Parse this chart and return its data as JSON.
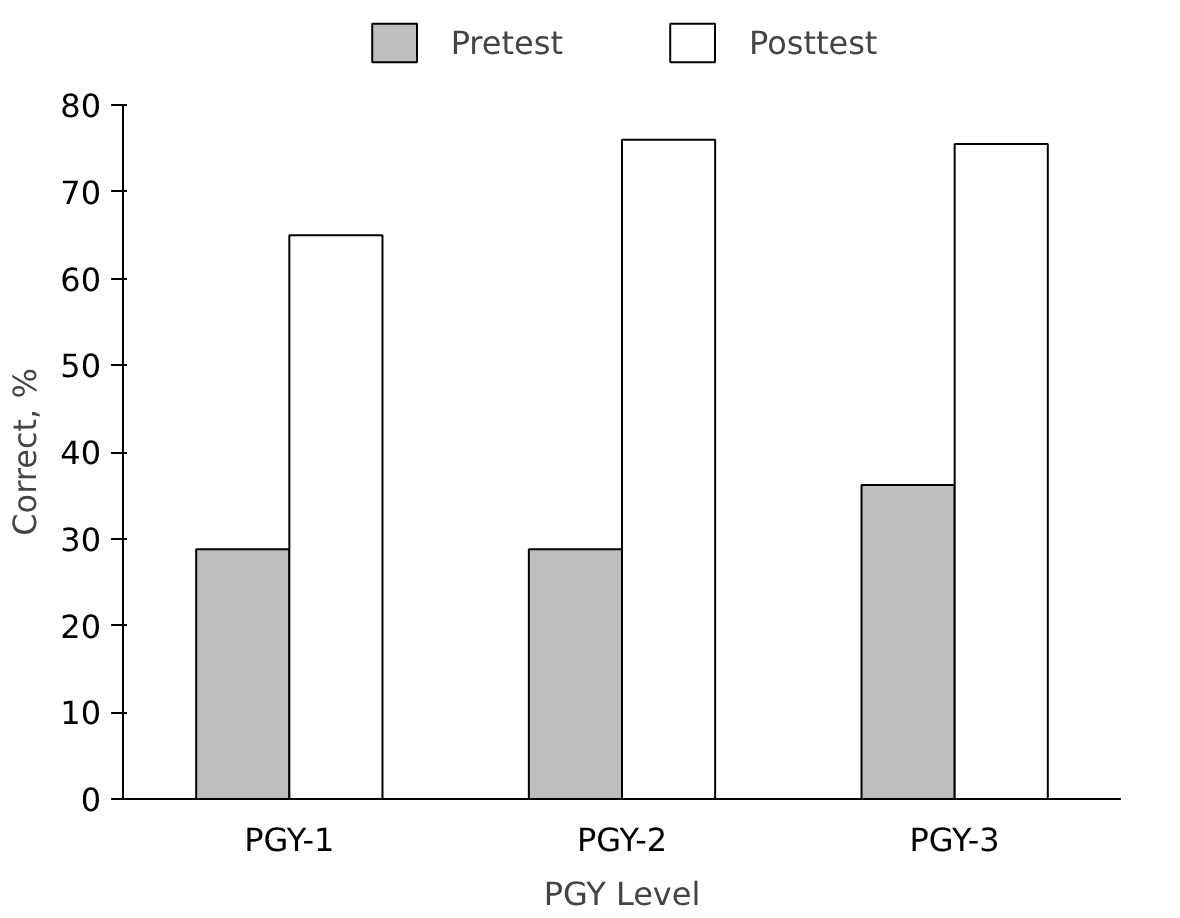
{
  "chart_data": {
    "type": "bar",
    "xlabel": "PGY Level",
    "ylabel": "Correct, %",
    "categories": [
      "PGY-1",
      "PGY-2",
      "PGY-3"
    ],
    "series": [
      {
        "name": "Pretest",
        "color": "#bebebe",
        "values": [
          28.8,
          28.8,
          36.2
        ]
      },
      {
        "name": "Posttest",
        "color": "#ffffff",
        "values": [
          65,
          76,
          75.5
        ]
      }
    ],
    "ylim": [
      0,
      80
    ],
    "yticks": [
      0,
      10,
      20,
      30,
      40,
      50,
      60,
      70,
      80
    ],
    "grid": false,
    "legend": "top"
  }
}
